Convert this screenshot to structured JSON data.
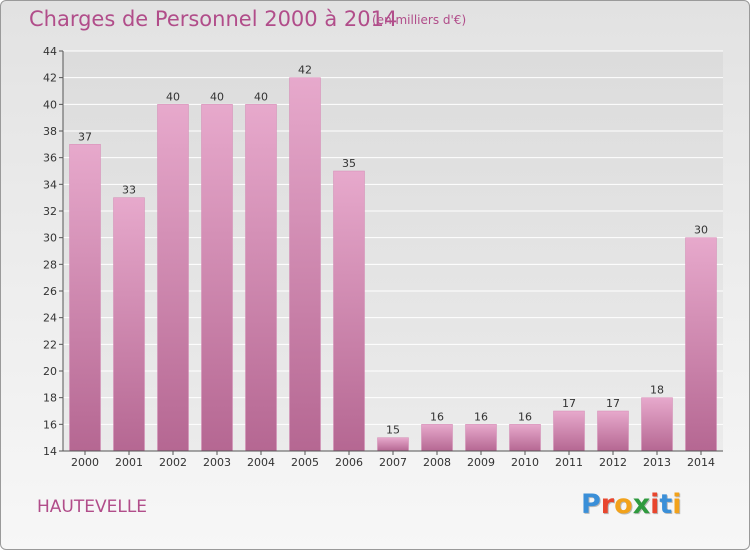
{
  "header": {
    "title": "Charges de Personnel 2000 à 2014",
    "subtitle": "(en milliers d'€)"
  },
  "footer": {
    "commune": "HAUTEVELLE",
    "logo_text": "Proxiti",
    "logo_letters": [
      {
        "char": "P",
        "color": "#3a8fd8"
      },
      {
        "char": "r",
        "color": "#e8462e"
      },
      {
        "char": "o",
        "color": "#f2a21b"
      },
      {
        "char": "x",
        "color": "#2f9a3e"
      },
      {
        "char": "i",
        "color": "#e8462e"
      },
      {
        "char": "t",
        "color": "#3a8fd8"
      },
      {
        "char": "i",
        "color": "#f2a21b"
      }
    ]
  },
  "colors": {
    "title": "#b14d8a",
    "bar_top": "#e7a9cc",
    "bar_bottom": "#b56792",
    "bar_edge": "#d48ab4",
    "axis": "#555555",
    "grid": "#ffffff"
  },
  "chart_data": {
    "type": "bar",
    "categories": [
      "2000",
      "2001",
      "2002",
      "2003",
      "2004",
      "2005",
      "2006",
      "2007",
      "2008",
      "2009",
      "2010",
      "2011",
      "2012",
      "2013",
      "2014"
    ],
    "values": [
      37,
      33,
      40,
      40,
      40,
      42,
      35,
      15,
      16,
      16,
      16,
      17,
      17,
      18,
      30
    ],
    "ylim": [
      14,
      44
    ],
    "yticks": [
      14,
      16,
      18,
      20,
      22,
      24,
      26,
      28,
      30,
      32,
      34,
      36,
      38,
      40,
      42,
      44
    ],
    "grid": true,
    "data_labels": true
  }
}
